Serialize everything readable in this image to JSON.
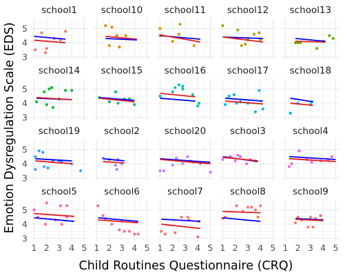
{
  "chart_data": {
    "type": "scatter",
    "title": "",
    "xlabel": "Child Routines Questionnaire (CRQ)",
    "ylabel": "Emotion Dysregulation Scale (EDS)",
    "xlim": [
      0.7,
      5.3
    ],
    "ylim": [
      2.8,
      5.75
    ],
    "x_ticks": [
      1,
      2,
      3,
      4,
      5
    ],
    "y_ticks": [
      3,
      4,
      5
    ],
    "grid": true,
    "legend": "none",
    "line_colors": {
      "red_line": "#e41a1c",
      "blue_line": "#0000ff"
    },
    "panels": [
      {
        "name": "school1",
        "color": "#F8766D",
        "points": [
          [
            1.1,
            3.5
          ],
          [
            1.6,
            4.7
          ],
          [
            1.9,
            3.3
          ],
          [
            2.0,
            3.6
          ],
          [
            2.6,
            4.3
          ],
          [
            3.1,
            4.2
          ],
          [
            3.5,
            4.8
          ]
        ],
        "red_line": [
          [
            1.0,
            4.18
          ],
          [
            3.5,
            4.0
          ]
        ],
        "blue_line": [
          [
            1.0,
            4.45
          ],
          [
            3.5,
            4.25
          ]
        ]
      },
      {
        "name": "school10",
        "color": "#E58700",
        "points": [
          [
            1.7,
            5.2
          ],
          [
            2.0,
            3.8
          ],
          [
            2.2,
            5.1
          ],
          [
            2.6,
            4.5
          ],
          [
            2.8,
            3.7
          ],
          [
            3.3,
            4.5
          ]
        ],
        "red_line": [
          [
            1.7,
            4.45
          ],
          [
            4.2,
            4.25
          ]
        ],
        "blue_line": [
          [
            1.7,
            4.3
          ],
          [
            4.2,
            4.2
          ]
        ]
      },
      {
        "name": "school11",
        "color": "#C99800",
        "points": [
          [
            1.0,
            5.0
          ],
          [
            1.0,
            4.5
          ],
          [
            2.0,
            4.1
          ],
          [
            2.5,
            4.6
          ],
          [
            2.6,
            5.3
          ],
          [
            3.7,
            3.8
          ]
        ],
        "red_line": [
          [
            1.0,
            4.55
          ],
          [
            4.2,
            4.05
          ]
        ],
        "blue_line": [
          [
            1.0,
            4.5
          ],
          [
            4.2,
            4.25
          ]
        ]
      },
      {
        "name": "school12",
        "color": "#A3A500",
        "points": [
          [
            1.0,
            5.2
          ],
          [
            2.2,
            4.9
          ],
          [
            2.5,
            3.8
          ],
          [
            2.8,
            3.9
          ],
          [
            3.0,
            4.3
          ],
          [
            3.0,
            4.2
          ],
          [
            3.5,
            4.6
          ],
          [
            3.9,
            4.7
          ],
          [
            4.0,
            4.2
          ]
        ],
        "red_line": [
          [
            1.0,
            4.4
          ],
          [
            4.2,
            4.05
          ]
        ],
        "blue_line": [
          [
            1.0,
            4.4
          ],
          [
            4.2,
            4.3
          ]
        ]
      },
      {
        "name": "school13",
        "color": "#6BB100",
        "points": [
          [
            1.8,
            4.0
          ],
          [
            2.0,
            4.0
          ],
          [
            2.2,
            4.0
          ],
          [
            3.5,
            3.6
          ],
          [
            4.0,
            4.1
          ],
          [
            4.5,
            4.5
          ],
          [
            4.8,
            4.3
          ]
        ],
        "red_line": [
          [
            1.8,
            4.1
          ],
          [
            4.2,
            4.05
          ]
        ],
        "blue_line": [
          [
            1.8,
            4.3
          ],
          [
            4.2,
            4.1
          ]
        ]
      },
      {
        "name": "school14",
        "color": "#00BA38",
        "points": [
          [
            1.2,
            4.1
          ],
          [
            1.8,
            4.8
          ],
          [
            2.0,
            3.9
          ],
          [
            2.2,
            5.0
          ],
          [
            2.4,
            5.1
          ],
          [
            2.5,
            3.7
          ],
          [
            3.0,
            4.3
          ],
          [
            3.5,
            4.9
          ],
          [
            4.0,
            4.9
          ]
        ],
        "red_line": [
          [
            1.2,
            4.4
          ],
          [
            4.0,
            4.25
          ]
        ],
        "blue_line": [
          [
            1.2,
            4.35
          ],
          [
            4.0,
            4.25
          ]
        ]
      },
      {
        "name": "school15",
        "color": "#00BF7D",
        "points": [
          [
            1.2,
            4.4
          ],
          [
            2.0,
            4.1
          ],
          [
            2.5,
            4.8
          ],
          [
            2.7,
            4.0
          ],
          [
            3.2,
            4.3
          ],
          [
            3.6,
            4.3
          ],
          [
            4.0,
            3.9
          ]
        ],
        "red_line": [
          [
            1.2,
            4.35
          ],
          [
            4.0,
            4.1
          ]
        ],
        "blue_line": [
          [
            1.2,
            4.4
          ],
          [
            4.0,
            4.2
          ]
        ]
      },
      {
        "name": "school16",
        "color": "#00C0AF",
        "points": [
          [
            1.0,
            4.5
          ],
          [
            2.0,
            4.8
          ],
          [
            2.2,
            5.1
          ],
          [
            2.5,
            5.3
          ],
          [
            2.8,
            5.2
          ],
          [
            2.8,
            5.0
          ],
          [
            3.6,
            4.6
          ],
          [
            4.0,
            3.8
          ],
          [
            4.1,
            4.0
          ]
        ],
        "red_line": [
          [
            1.0,
            4.7
          ],
          [
            3.8,
            4.45
          ]
        ],
        "blue_line": [
          [
            1.0,
            4.35
          ],
          [
            3.8,
            4.15
          ]
        ]
      },
      {
        "name": "school17",
        "color": "#00BCD8",
        "points": [
          [
            1.2,
            3.9
          ],
          [
            1.5,
            4.5
          ],
          [
            1.9,
            4.6
          ],
          [
            2.1,
            4.0
          ],
          [
            2.4,
            4.1
          ],
          [
            3.0,
            4.0
          ],
          [
            3.6,
            3.4
          ],
          [
            3.9,
            4.9
          ],
          [
            4.2,
            3.6
          ]
        ],
        "red_line": [
          [
            1.2,
            4.15
          ],
          [
            4.2,
            3.95
          ]
        ],
        "blue_line": [
          [
            1.2,
            4.35
          ],
          [
            4.2,
            4.15
          ]
        ]
      },
      {
        "name": "school18",
        "color": "#00B0F6",
        "points": [
          [
            1.4,
            3.3
          ],
          [
            2.0,
            4.0
          ],
          [
            3.0,
            3.9
          ],
          [
            3.1,
            4.1
          ]
        ],
        "red_line": [
          [
            1.4,
            4.0
          ],
          [
            3.2,
            3.85
          ]
        ],
        "blue_line": [
          [
            1.4,
            4.35
          ],
          [
            3.2,
            4.1
          ]
        ]
      },
      {
        "name": "school19",
        "color": "#35A2FF",
        "points": [
          [
            1.1,
            3.6
          ],
          [
            1.1,
            4.5
          ],
          [
            1.4,
            4.9
          ],
          [
            1.7,
            4.8
          ],
          [
            1.8,
            3.8
          ],
          [
            2.1,
            3.7
          ],
          [
            2.5,
            4.2
          ],
          [
            3.0,
            4.2
          ],
          [
            3.2,
            4.1
          ],
          [
            4.0,
            4.0
          ],
          [
            4.7,
            3.5
          ]
        ],
        "red_line": [
          [
            1.1,
            4.2
          ],
          [
            4.0,
            4.0
          ]
        ],
        "blue_line": [
          [
            1.1,
            4.35
          ],
          [
            4.0,
            4.2
          ]
        ]
      },
      {
        "name": "school2",
        "color": "#9590FF",
        "points": [
          [
            1.5,
            4.4
          ],
          [
            2.0,
            4.3
          ],
          [
            2.5,
            3.9
          ],
          [
            2.6,
            3.6
          ],
          [
            2.7,
            4.3
          ],
          [
            3.0,
            4.0
          ]
        ],
        "red_line": [
          [
            1.5,
            4.15
          ],
          [
            3.2,
            4.05
          ]
        ],
        "blue_line": [
          [
            1.5,
            4.35
          ],
          [
            3.2,
            4.2
          ]
        ]
      },
      {
        "name": "school20",
        "color": "#C77CFF",
        "points": [
          [
            1.0,
            3.5
          ],
          [
            1.3,
            3.5
          ],
          [
            2.0,
            3.9
          ],
          [
            2.3,
            4.4
          ],
          [
            2.8,
            4.0
          ],
          [
            3.2,
            4.5
          ],
          [
            3.4,
            4.2
          ],
          [
            3.6,
            4.1
          ],
          [
            4.2,
            4.0
          ],
          [
            5.0,
            3.4
          ]
        ],
        "red_line": [
          [
            1.0,
            4.3
          ],
          [
            5.0,
            4.0
          ]
        ],
        "blue_line": [
          [
            1.0,
            4.35
          ],
          [
            5.0,
            4.1
          ]
        ]
      },
      {
        "name": "school3",
        "color": "#E76BF3",
        "points": [
          [
            1.0,
            4.3
          ],
          [
            1.6,
            4.5
          ],
          [
            2.0,
            4.2
          ],
          [
            2.2,
            4.6
          ],
          [
            2.4,
            4.5
          ],
          [
            2.9,
            4.0
          ],
          [
            3.2,
            4.3
          ],
          [
            3.6,
            4.2
          ]
        ],
        "red_line": [
          [
            1.0,
            4.45
          ],
          [
            3.8,
            4.2
          ]
        ],
        "blue_line": [
          [
            1.0,
            4.5
          ],
          [
            3.8,
            4.15
          ]
        ]
      },
      {
        "name": "school4",
        "color": "#FA62DB",
        "points": [
          [
            1.3,
            3.8
          ],
          [
            1.5,
            4.0
          ],
          [
            2.1,
            4.9
          ],
          [
            2.7,
            4.3
          ],
          [
            3.1,
            4.1
          ],
          [
            3.8,
            4.2
          ],
          [
            4.4,
            4.3
          ],
          [
            4.7,
            4.5
          ]
        ],
        "red_line": [
          [
            1.3,
            4.35
          ],
          [
            5.0,
            4.15
          ]
        ],
        "blue_line": [
          [
            1.3,
            4.5
          ],
          [
            5.0,
            4.3
          ]
        ]
      },
      {
        "name": "school5",
        "color": "#FF62BC",
        "points": [
          [
            1.0,
            5.0
          ],
          [
            1.3,
            4.5
          ],
          [
            1.9,
            4.0
          ],
          [
            2.0,
            5.5
          ],
          [
            2.7,
            4.3
          ],
          [
            3.1,
            5.3
          ],
          [
            3.2,
            4.0
          ],
          [
            3.6,
            5.3
          ],
          [
            3.6,
            4.5
          ]
        ],
        "red_line": [
          [
            1.0,
            4.75
          ],
          [
            4.2,
            4.55
          ]
        ],
        "blue_line": [
          [
            1.0,
            4.45
          ],
          [
            4.2,
            4.2
          ]
        ]
      },
      {
        "name": "school6",
        "color": "#FF6C91",
        "points": [
          [
            1.1,
            5.3
          ],
          [
            1.5,
            4.6
          ],
          [
            1.7,
            4.4
          ],
          [
            2.2,
            4.0
          ],
          [
            2.8,
            3.6
          ],
          [
            3.0,
            4.2
          ],
          [
            3.2,
            3.5
          ],
          [
            3.6,
            3.5
          ],
          [
            4.0,
            3.3
          ],
          [
            4.3,
            3.3
          ]
        ],
        "red_line": [
          [
            1.1,
            4.3
          ],
          [
            4.3,
            4.1
          ]
        ],
        "blue_line": [
          [
            1.1,
            4.45
          ],
          [
            4.3,
            4.2
          ]
        ]
      },
      {
        "name": "school7",
        "color": "#F8766D",
        "points": [
          [
            1.1,
            3.5
          ],
          [
            1.4,
            3.3
          ],
          [
            2.2,
            3.4
          ],
          [
            2.7,
            4.5
          ],
          [
            3.2,
            4.5
          ],
          [
            3.3,
            4.3
          ],
          [
            4.0,
            3.1
          ],
          [
            4.1,
            4.2
          ]
        ],
        "red_line": [
          [
            1.1,
            4.0
          ],
          [
            4.2,
            3.7
          ]
        ],
        "blue_line": [
          [
            1.1,
            4.35
          ],
          [
            4.2,
            4.2
          ]
        ]
      },
      {
        "name": "school8",
        "color": "#F8766D",
        "points": [
          [
            1.0,
            4.4
          ],
          [
            1.2,
            4.5
          ],
          [
            2.1,
            5.3
          ],
          [
            2.6,
            4.9
          ],
          [
            3.0,
            5.2
          ],
          [
            3.3,
            5.2
          ],
          [
            3.6,
            5.0
          ],
          [
            3.8,
            4.5
          ],
          [
            4.0,
            5.3
          ]
        ],
        "red_line": [
          [
            1.0,
            4.9
          ],
          [
            4.0,
            4.8
          ]
        ],
        "blue_line": [
          [
            1.0,
            4.45
          ],
          [
            4.0,
            4.2
          ]
        ]
      },
      {
        "name": "school9",
        "color": "#F8766D",
        "points": [
          [
            1.8,
            4.1
          ],
          [
            2.0,
            4.5
          ],
          [
            2.3,
            4.3
          ],
          [
            2.8,
            3.8
          ],
          [
            3.0,
            4.5
          ],
          [
            3.2,
            3.8
          ],
          [
            3.4,
            4.4
          ],
          [
            3.8,
            4.6
          ],
          [
            3.9,
            4.3
          ]
        ],
        "red_line": [
          [
            1.8,
            4.35
          ],
          [
            4.0,
            4.25
          ]
        ],
        "blue_line": [
          [
            1.8,
            4.4
          ],
          [
            4.0,
            4.3
          ]
        ]
      }
    ]
  }
}
